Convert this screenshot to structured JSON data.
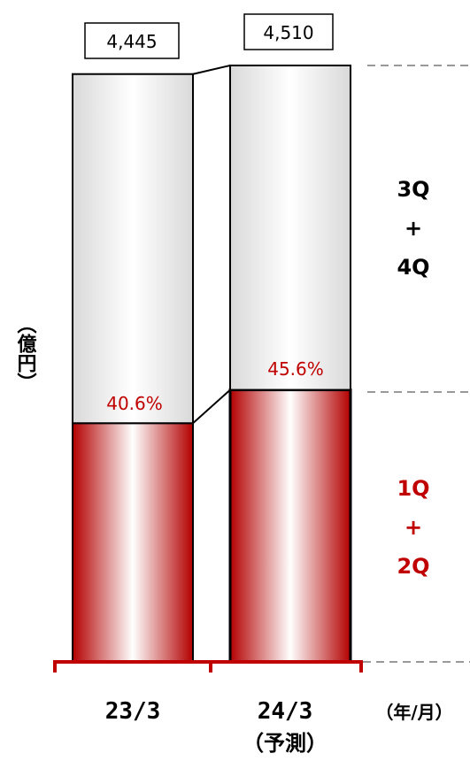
{
  "chart_data": {
    "type": "bar",
    "stacked": true,
    "categories": [
      "23/3",
      "24/3"
    ],
    "category_sublabels": [
      "",
      "（予測）"
    ],
    "totals": [
      4445,
      4510
    ],
    "total_labels": [
      "4,445",
      "4,510"
    ],
    "series": [
      {
        "name": "1Q+2Q",
        "values": [
          1805,
          2057
        ],
        "color": "#c00000"
      },
      {
        "name": "3Q+4Q",
        "values": [
          2640,
          2453
        ],
        "color": "#e6e6e6"
      }
    ],
    "first_half_share_labels": [
      "40.6%",
      "45.6%"
    ],
    "segment_labels": {
      "top": [
        "3Q",
        "+",
        "4Q"
      ],
      "bottom": [
        "1Q",
        "+",
        "2Q"
      ]
    },
    "ylabel": "（億円）",
    "xunit": "（年/月）",
    "ylim": [
      0,
      4510
    ],
    "grid": false
  }
}
